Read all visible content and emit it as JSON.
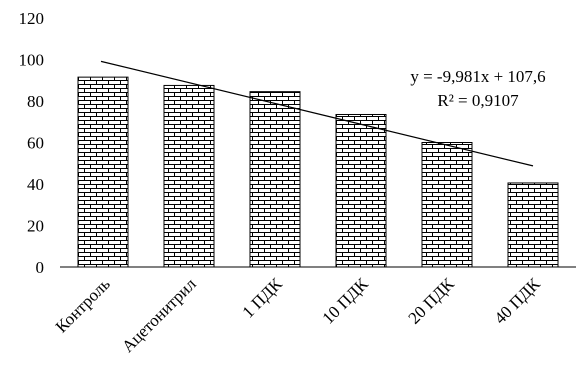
{
  "chart_data": {
    "type": "bar",
    "categories": [
      "Контроль",
      "Ацетонитрил",
      "1 ПДК",
      "10 ПДК",
      "20 ПДК",
      "40 ПДК"
    ],
    "values": [
      91.5,
      87.5,
      84.5,
      73.5,
      60,
      40.5
    ],
    "ylim": [
      0,
      120
    ],
    "yticks": [
      0,
      20,
      40,
      60,
      80,
      100,
      120
    ],
    "grid": false,
    "bar_fill": "brick-pattern",
    "trendline": {
      "type": "linear",
      "slope": -9.981,
      "intercept": 107.6,
      "equation_label": "y = -9,981x + 107,6",
      "r2_label": "R² = 0,9107"
    }
  },
  "colors": {
    "axis": "#000000",
    "bar_border": "#000000",
    "brick_mortar": "#000000",
    "brick": "#ffffff",
    "trendline": "#000000"
  }
}
